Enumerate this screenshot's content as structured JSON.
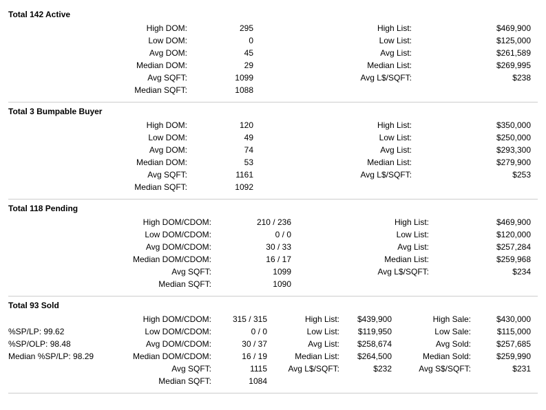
{
  "active": {
    "title": "Total 142 Active",
    "rows": [
      {
        "l1": "High DOM:",
        "v1": "295",
        "l2": "High List:",
        "v2": "$469,900"
      },
      {
        "l1": "Low DOM:",
        "v1": "0",
        "l2": "Low List:",
        "v2": "$125,000"
      },
      {
        "l1": "Avg DOM:",
        "v1": "45",
        "l2": "Avg List:",
        "v2": "$261,589"
      },
      {
        "l1": "Median DOM:",
        "v1": "29",
        "l2": "Median List:",
        "v2": "$269,995"
      },
      {
        "l1": "Avg SQFT:",
        "v1": "1099",
        "l2": "Avg L$/SQFT:",
        "v2": "$238"
      },
      {
        "l1": "Median SQFT:",
        "v1": "1088",
        "l2": "",
        "v2": ""
      }
    ]
  },
  "bumpable": {
    "title": "Total 3 Bumpable Buyer",
    "rows": [
      {
        "l1": "High DOM:",
        "v1": "120",
        "l2": "High List:",
        "v2": "$350,000"
      },
      {
        "l1": "Low DOM:",
        "v1": "49",
        "l2": "Low List:",
        "v2": "$250,000"
      },
      {
        "l1": "Avg DOM:",
        "v1": "74",
        "l2": "Avg List:",
        "v2": "$293,300"
      },
      {
        "l1": "Median DOM:",
        "v1": "53",
        "l2": "Median List:",
        "v2": "$279,900"
      },
      {
        "l1": "Avg SQFT:",
        "v1": "1161",
        "l2": "Avg L$/SQFT:",
        "v2": "$253"
      },
      {
        "l1": "Median SQFT:",
        "v1": "1092",
        "l2": "",
        "v2": ""
      }
    ]
  },
  "pending": {
    "title": "Total 118 Pending",
    "rows": [
      {
        "l1": "High DOM/CDOM:",
        "v1": "210 / 236",
        "l2": "High List:",
        "v2": "$469,900"
      },
      {
        "l1": "Low DOM/CDOM:",
        "v1": "0 / 0",
        "l2": "Low List:",
        "v2": "$120,000"
      },
      {
        "l1": "Avg DOM/CDOM:",
        "v1": "30 / 33",
        "l2": "Avg List:",
        "v2": "$257,284"
      },
      {
        "l1": "Median DOM/CDOM:",
        "v1": "16 / 17",
        "l2": "Median List:",
        "v2": "$259,968"
      },
      {
        "l1": "Avg SQFT:",
        "v1": "1099",
        "l2": "Avg L$/SQFT:",
        "v2": "$234"
      },
      {
        "l1": "Median SQFT:",
        "v1": "1090",
        "l2": "",
        "v2": ""
      }
    ]
  },
  "sold": {
    "title": "Total 93 Sold",
    "rows": [
      {
        "lead": "",
        "l1": "High DOM/CDOM:",
        "v1": "315 / 315",
        "l2": "High List:",
        "v2": "$439,900",
        "l3": "High Sale:",
        "v3": "$430,000"
      },
      {
        "lead": "%SP/LP: 99.62",
        "l1": "Low DOM/CDOM:",
        "v1": "0 / 0",
        "l2": "Low List:",
        "v2": "$119,950",
        "l3": "Low Sale:",
        "v3": "$115,000"
      },
      {
        "lead": "%SP/OLP: 98.48",
        "l1": "Avg DOM/CDOM:",
        "v1": "30 / 37",
        "l2": "Avg List:",
        "v2": "$258,674",
        "l3": "Avg Sold:",
        "v3": "$257,685"
      },
      {
        "lead": "Median %SP/LP: 98.29",
        "l1": "Median DOM/CDOM:",
        "v1": "16 / 19",
        "l2": "Median List:",
        "v2": "$264,500",
        "l3": "Median Sold:",
        "v3": "$259,990"
      },
      {
        "lead": "",
        "l1": "Avg SQFT:",
        "v1": "1115",
        "l2": "Avg L$/SQFT:",
        "v2": "$232",
        "l3": "Avg S$/SQFT:",
        "v3": "$231"
      },
      {
        "lead": "",
        "l1": "Median SQFT:",
        "v1": "1084",
        "l2": "",
        "v2": "",
        "l3": "",
        "v3": ""
      }
    ]
  }
}
